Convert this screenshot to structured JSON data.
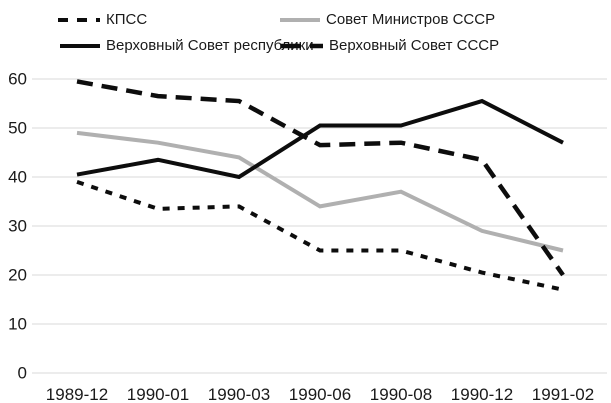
{
  "chart_data": {
    "type": "line",
    "title": "",
    "xlabel": "",
    "ylabel": "",
    "categories": [
      "1989-12",
      "1990-01",
      "1990-03",
      "1990-06",
      "1990-08",
      "1990-12",
      "1991-02"
    ],
    "series": [
      {
        "name": "КПСС",
        "line_style": "dotted",
        "color": "#0d0d0d",
        "values": [
          39,
          33.5,
          34,
          25,
          25,
          20.5,
          17
        ]
      },
      {
        "name": "Совет Министров СССР",
        "line_style": "solid",
        "color": "#b0b0b0",
        "values": [
          49,
          47,
          44,
          34,
          37,
          29,
          25
        ]
      },
      {
        "name": "Верховный Совет республики",
        "line_style": "solid",
        "color": "#0d0d0d",
        "values": [
          40.5,
          43.5,
          40,
          50.5,
          50.5,
          55.5,
          47
        ]
      },
      {
        "name": "Верховный Совет СССР",
        "line_style": "dashed",
        "color": "#0d0d0d",
        "values": [
          59.5,
          56.5,
          55.5,
          46.5,
          47,
          43.5,
          20
        ]
      }
    ],
    "ylim": [
      0,
      60
    ],
    "yticks": [
      0,
      10,
      20,
      30,
      40,
      50,
      60
    ],
    "grid": "horizontal",
    "legend_position": "top",
    "colors": {
      "gridline": "#d9d9d9",
      "text": "#1a1a1a",
      "background": "#ffffff"
    }
  }
}
